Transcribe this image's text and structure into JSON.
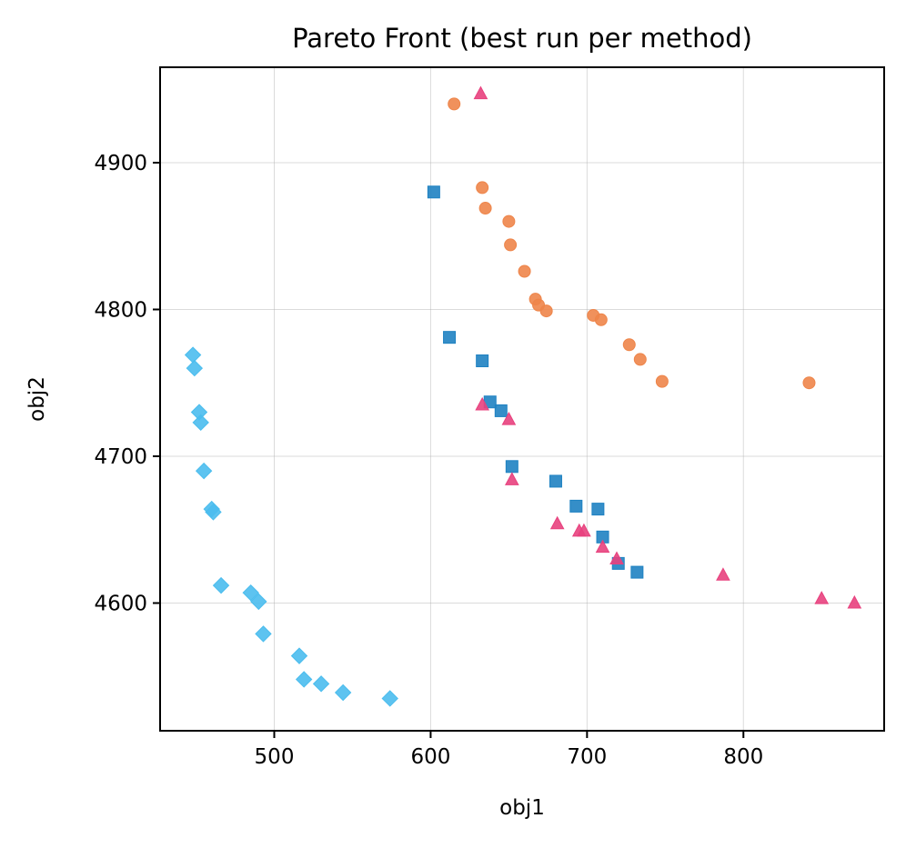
{
  "chart_data": {
    "type": "scatter",
    "title": "Pareto Front (best run per method)",
    "xlabel": "obj1",
    "ylabel": "obj2",
    "xlim": [
      427,
      890
    ],
    "ylim": [
      4513,
      4965
    ],
    "xticks": [
      500,
      600,
      700,
      800
    ],
    "yticks": [
      4600,
      4700,
      4800,
      4900
    ],
    "grid": true,
    "legend": "none",
    "series": [
      {
        "color": "#ee854a",
        "marker": "circle",
        "points": [
          [
            615,
            4940
          ],
          [
            633,
            4883
          ],
          [
            635,
            4869
          ],
          [
            650,
            4860
          ],
          [
            651,
            4844
          ],
          [
            660,
            4826
          ],
          [
            667,
            4807
          ],
          [
            669,
            4803
          ],
          [
            674,
            4799
          ],
          [
            704,
            4796
          ],
          [
            709,
            4793
          ],
          [
            727,
            4776
          ],
          [
            734,
            4766
          ],
          [
            748,
            4751
          ],
          [
            842,
            4750
          ]
        ]
      },
      {
        "color": "#1f82c2",
        "marker": "square",
        "points": [
          [
            602,
            4880
          ],
          [
            612,
            4781
          ],
          [
            633,
            4765
          ],
          [
            638,
            4737
          ],
          [
            645,
            4731
          ],
          [
            652,
            4693
          ],
          [
            680,
            4683
          ],
          [
            693,
            4666
          ],
          [
            707,
            4664
          ],
          [
            710,
            4645
          ],
          [
            720,
            4627
          ],
          [
            732,
            4621
          ]
        ]
      },
      {
        "color": "#e8417e",
        "marker": "triangle",
        "points": [
          [
            632,
            4947
          ],
          [
            633,
            4735
          ],
          [
            650,
            4725
          ],
          [
            652,
            4684
          ],
          [
            681,
            4654
          ],
          [
            695,
            4649
          ],
          [
            698,
            4649
          ],
          [
            710,
            4638
          ],
          [
            719,
            4630
          ],
          [
            787,
            4619
          ],
          [
            850,
            4603
          ],
          [
            871,
            4600
          ]
        ]
      },
      {
        "color": "#4bbdee",
        "marker": "diamond",
        "points": [
          [
            448,
            4769
          ],
          [
            449,
            4760
          ],
          [
            452,
            4730
          ],
          [
            453,
            4723
          ],
          [
            455,
            4690
          ],
          [
            460,
            4664
          ],
          [
            461,
            4662
          ],
          [
            466,
            4612
          ],
          [
            485,
            4607
          ],
          [
            490,
            4601
          ],
          [
            493,
            4579
          ],
          [
            516,
            4564
          ],
          [
            519,
            4548
          ],
          [
            530,
            4545
          ],
          [
            544,
            4539
          ],
          [
            574,
            4535
          ]
        ]
      }
    ]
  }
}
